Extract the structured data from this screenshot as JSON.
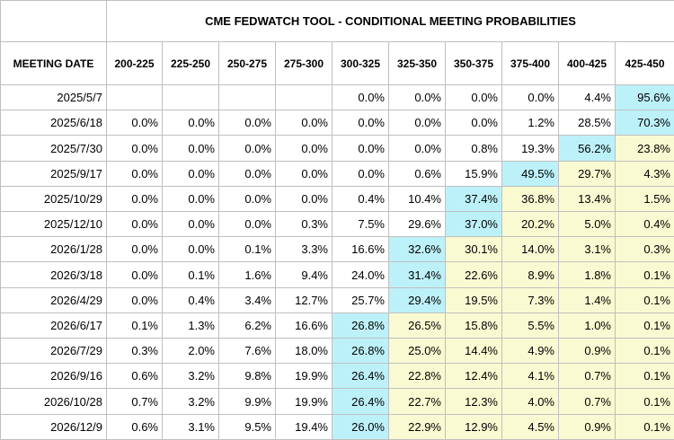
{
  "title": "CME FEDWATCH TOOL - CONDITIONAL MEETING PROBABILITIES",
  "date_header": "MEETING DATE",
  "columns": [
    "200-225",
    "225-250",
    "250-275",
    "275-300",
    "300-325",
    "325-350",
    "350-375",
    "375-400",
    "400-425",
    "425-450"
  ],
  "colors": {
    "max": "#bdf1f9",
    "above_max": "#fafad2",
    "border": "#bfbfbf"
  },
  "rows": [
    {
      "date": "2025/5/7",
      "values": [
        "",
        "",
        "",
        "",
        "0.0%",
        "0.0%",
        "0.0%",
        "0.0%",
        "4.4%",
        "95.6%"
      ],
      "max_index": 9
    },
    {
      "date": "2025/6/18",
      "values": [
        "0.0%",
        "0.0%",
        "0.0%",
        "0.0%",
        "0.0%",
        "0.0%",
        "0.0%",
        "1.2%",
        "28.5%",
        "70.3%"
      ],
      "max_index": 9
    },
    {
      "date": "2025/7/30",
      "values": [
        "0.0%",
        "0.0%",
        "0.0%",
        "0.0%",
        "0.0%",
        "0.0%",
        "0.8%",
        "19.3%",
        "56.2%",
        "23.8%"
      ],
      "max_index": 8
    },
    {
      "date": "2025/9/17",
      "values": [
        "0.0%",
        "0.0%",
        "0.0%",
        "0.0%",
        "0.0%",
        "0.6%",
        "15.9%",
        "49.5%",
        "29.7%",
        "4.3%"
      ],
      "max_index": 7
    },
    {
      "date": "2025/10/29",
      "values": [
        "0.0%",
        "0.0%",
        "0.0%",
        "0.0%",
        "0.4%",
        "10.4%",
        "37.4%",
        "36.8%",
        "13.4%",
        "1.5%"
      ],
      "max_index": 6
    },
    {
      "date": "2025/12/10",
      "values": [
        "0.0%",
        "0.0%",
        "0.0%",
        "0.3%",
        "7.5%",
        "29.6%",
        "37.0%",
        "20.2%",
        "5.0%",
        "0.4%"
      ],
      "max_index": 6
    },
    {
      "date": "2026/1/28",
      "values": [
        "0.0%",
        "0.0%",
        "0.1%",
        "3.3%",
        "16.6%",
        "32.6%",
        "30.1%",
        "14.0%",
        "3.1%",
        "0.3%"
      ],
      "max_index": 5
    },
    {
      "date": "2026/3/18",
      "values": [
        "0.0%",
        "0.1%",
        "1.6%",
        "9.4%",
        "24.0%",
        "31.4%",
        "22.6%",
        "8.9%",
        "1.8%",
        "0.1%"
      ],
      "max_index": 5
    },
    {
      "date": "2026/4/29",
      "values": [
        "0.0%",
        "0.4%",
        "3.4%",
        "12.7%",
        "25.7%",
        "29.4%",
        "19.5%",
        "7.3%",
        "1.4%",
        "0.1%"
      ],
      "max_index": 5
    },
    {
      "date": "2026/6/17",
      "values": [
        "0.1%",
        "1.3%",
        "6.2%",
        "16.6%",
        "26.8%",
        "26.5%",
        "15.8%",
        "5.5%",
        "1.0%",
        "0.1%"
      ],
      "max_index": 4
    },
    {
      "date": "2026/7/29",
      "values": [
        "0.3%",
        "2.0%",
        "7.6%",
        "18.0%",
        "26.8%",
        "25.0%",
        "14.4%",
        "4.9%",
        "0.9%",
        "0.1%"
      ],
      "max_index": 4
    },
    {
      "date": "2026/9/16",
      "values": [
        "0.6%",
        "3.2%",
        "9.8%",
        "19.9%",
        "26.4%",
        "22.8%",
        "12.4%",
        "4.1%",
        "0.7%",
        "0.1%"
      ],
      "max_index": 4
    },
    {
      "date": "2026/10/28",
      "values": [
        "0.7%",
        "3.2%",
        "9.9%",
        "19.9%",
        "26.4%",
        "22.7%",
        "12.3%",
        "4.0%",
        "0.7%",
        "0.1%"
      ],
      "max_index": 4
    },
    {
      "date": "2026/12/9",
      "values": [
        "0.6%",
        "3.1%",
        "9.5%",
        "19.4%",
        "26.0%",
        "22.9%",
        "12.9%",
        "4.5%",
        "0.9%",
        "0.1%"
      ],
      "max_index": 4
    }
  ]
}
